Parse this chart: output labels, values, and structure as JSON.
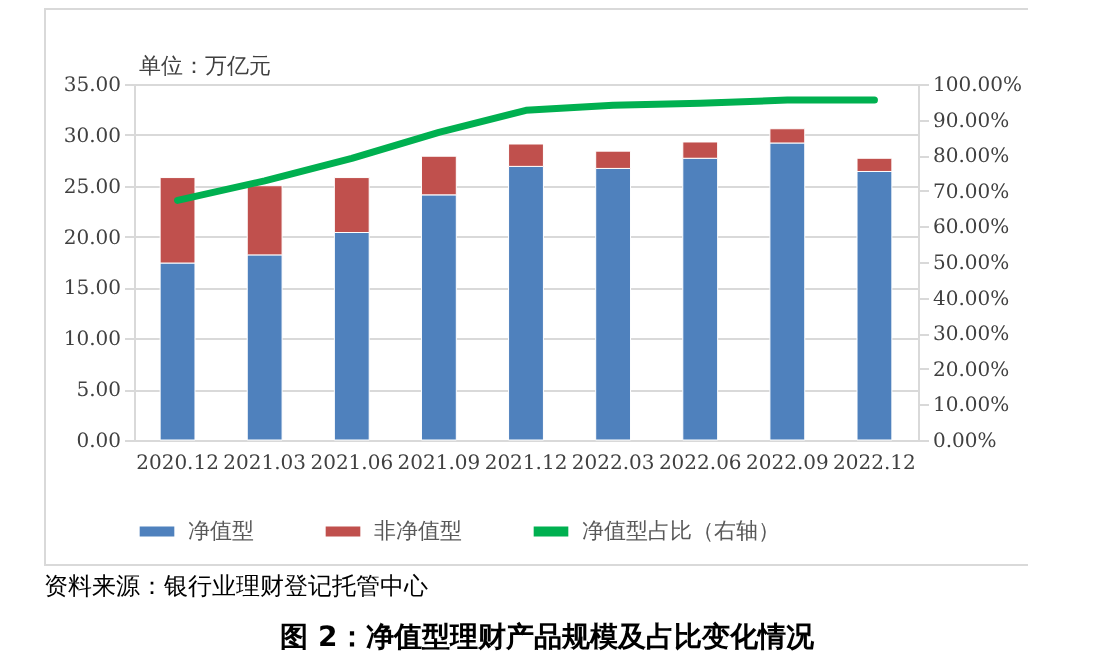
{
  "chart_data": {
    "type": "bar",
    "stacked": true,
    "ylabel": "单位：万亿元",
    "title": "图 2：净值型理财产品规模及占比变化情况",
    "annotations": [
      "资料来源：银行业理财登记托管中心"
    ],
    "categories": [
      "2020.12",
      "2021.03",
      "2021.06",
      "2021.09",
      "2021.12",
      "2022.03",
      "2022.06",
      "2022.09",
      "2022.12"
    ],
    "series": [
      {
        "name": "净值型",
        "color": "#4f81bd",
        "values": [
          17.4,
          18.2,
          20.4,
          24.1,
          26.9,
          26.7,
          27.7,
          29.2,
          26.4
        ]
      },
      {
        "name": "非净值型",
        "color": "#c0504d",
        "values": [
          8.4,
          6.8,
          5.4,
          3.8,
          2.2,
          1.7,
          1.6,
          1.4,
          1.3
        ]
      },
      {
        "name": "净值型占比（右轴）",
        "type": "line",
        "axis": "y2",
        "color": "#00b050",
        "values": [
          67.3,
          72.8,
          79.1,
          86.4,
          92.6,
          94.0,
          94.6,
          95.5,
          95.5
        ]
      }
    ],
    "ylim": [
      0,
      35
    ],
    "yticks": [
      {
        "value": 0,
        "label": "0.00"
      },
      {
        "value": 5,
        "label": "5.00"
      },
      {
        "value": 10,
        "label": "10.00"
      },
      {
        "value": 15,
        "label": "15.00"
      },
      {
        "value": 20,
        "label": "20.00"
      },
      {
        "value": 25,
        "label": "25.00"
      },
      {
        "value": 30,
        "label": "30.00"
      },
      {
        "value": 35,
        "label": "35.00"
      }
    ],
    "y2lim": [
      0,
      100
    ],
    "y2ticks": [
      {
        "value": 0,
        "label": "0.00%"
      },
      {
        "value": 10,
        "label": "10.00%"
      },
      {
        "value": 20,
        "label": "20.00%"
      },
      {
        "value": 30,
        "label": "30.00%"
      },
      {
        "value": 40,
        "label": "40.00%"
      },
      {
        "value": 50,
        "label": "50.00%"
      },
      {
        "value": 60,
        "label": "60.00%"
      },
      {
        "value": 70,
        "label": "70.00%"
      },
      {
        "value": 80,
        "label": "80.00%"
      },
      {
        "value": 90,
        "label": "90.00%"
      },
      {
        "value": 100,
        "label": "100.00%"
      }
    ],
    "grid": "y",
    "legend": "bottom"
  }
}
